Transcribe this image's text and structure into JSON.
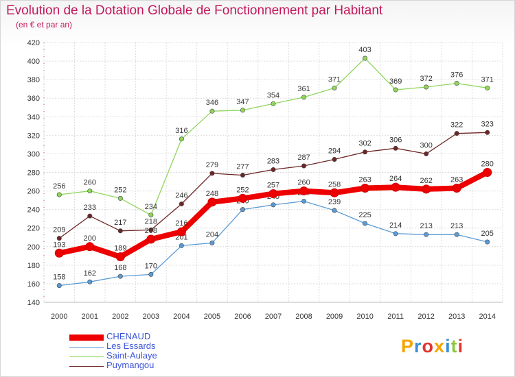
{
  "title": "Evolution de la Dotation Globale de Fonctionnement par Habitant",
  "subtitle": "(en € et par an)",
  "logo": {
    "text": "Proxiti"
  },
  "chart_data": {
    "type": "line",
    "x": [
      "2000",
      "2001",
      "2002",
      "2003",
      "2004",
      "2005",
      "2006",
      "2007",
      "2008",
      "2009",
      "2010",
      "2011",
      "2012",
      "2013",
      "2014"
    ],
    "ylim": [
      140,
      420
    ],
    "yticks": [
      140,
      160,
      180,
      200,
      220,
      240,
      260,
      280,
      300,
      320,
      340,
      360,
      380,
      400,
      420
    ],
    "grid": true,
    "legend_position": "bottom-left",
    "series": [
      {
        "name": "Les Essards",
        "color": "#5b9bd5",
        "values": [
          158,
          162,
          168,
          170,
          201,
          204,
          240,
          245,
          249,
          239,
          225,
          214,
          213,
          213,
          205
        ],
        "labels": [
          "158",
          "162",
          "168",
          "170",
          "201",
          "204",
          "240",
          "245",
          "249",
          "239",
          "225",
          "214",
          "213",
          "213",
          "205"
        ]
      },
      {
        "name": "Saint-Aulaye",
        "color": "#8fd65c",
        "values": [
          256,
          260,
          252,
          234,
          316,
          346,
          347,
          354,
          361,
          371,
          403,
          369,
          372,
          376,
          371
        ],
        "labels": [
          "256",
          "260",
          "252",
          "234",
          "316",
          "346",
          "347",
          "354",
          "361",
          "371",
          "403",
          "369",
          "372",
          "376",
          "371"
        ]
      },
      {
        "name": "Puymangou",
        "color": "#6e2626",
        "values": [
          209,
          233,
          217,
          218,
          246,
          279,
          277,
          283,
          287,
          294,
          302,
          306,
          300,
          322,
          323
        ],
        "labels": [
          "209",
          "233",
          "217",
          "218",
          "246",
          "279",
          "277",
          "283",
          "287",
          "294",
          "302",
          "306",
          "300",
          "322",
          "323"
        ]
      },
      {
        "name": "CHENAUD",
        "color": "#ee0000",
        "values": [
          193,
          200,
          189,
          208,
          216,
          248,
          252,
          257,
          260,
          258,
          263,
          264,
          262,
          263,
          280
        ],
        "labels": [
          "193",
          "200",
          "189",
          "208",
          "216",
          "248",
          "252",
          "257",
          "260",
          "258",
          "263",
          "264",
          "262",
          "263",
          "280"
        ]
      }
    ],
    "legend": [
      "CHENAUD",
      "Les Essards",
      "Saint-Aulaye",
      "Puymangou"
    ]
  }
}
